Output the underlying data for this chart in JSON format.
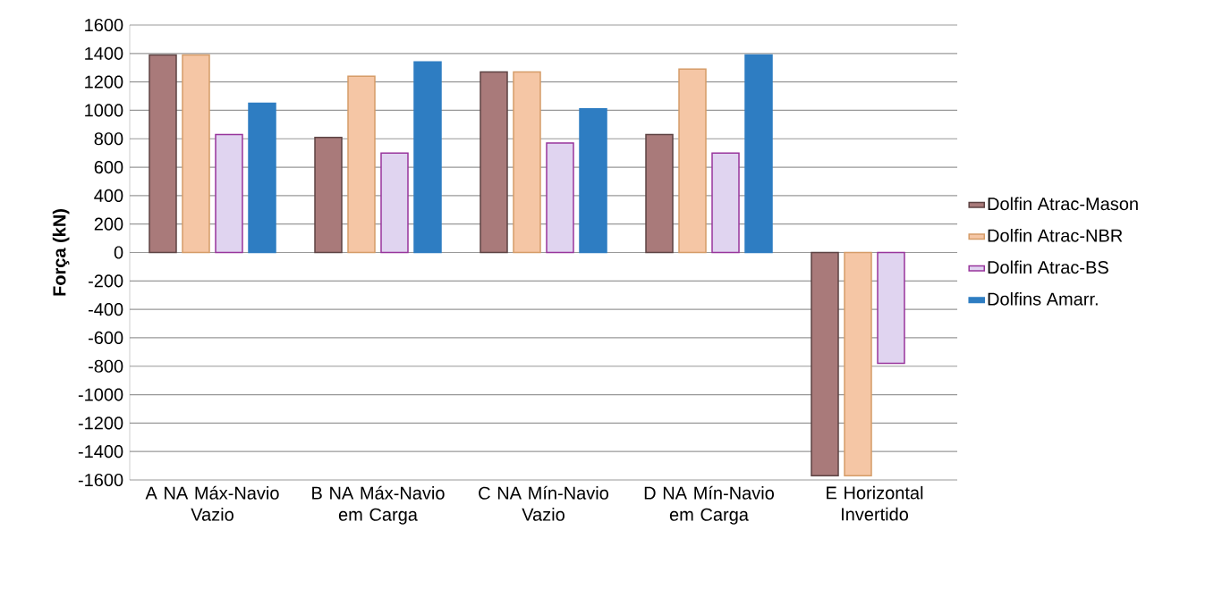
{
  "chart_data": {
    "type": "bar",
    "ylabel": "Força (kN)",
    "categories": [
      "A NA Máx-Navio Vazio",
      "B NA Máx-Navio em Carga",
      "C NA Mín-Navio Vazio",
      "D NA Mín-Navio em Carga",
      "E Horizontal Invertido"
    ],
    "series": [
      {
        "name": "Dolfin Atrac-Mason",
        "color": "#a97a7a",
        "values": [
          1390,
          810,
          1270,
          830,
          -1570
        ]
      },
      {
        "name": "Dolfin Atrac-NBR",
        "color": "#f5c6a5",
        "values": [
          1390,
          1240,
          1270,
          1290,
          -1570
        ]
      },
      {
        "name": "Dolfin Atrac-BS",
        "color": "#e0d4f0",
        "values": [
          830,
          700,
          770,
          700,
          -780
        ]
      },
      {
        "name": "Dolfins Amarr.",
        "color": "#2e7dc2",
        "values": [
          1050,
          1340,
          1010,
          1390,
          null
        ]
      }
    ],
    "ylim": [
      -1600,
      1600
    ],
    "yticks": [
      -1600,
      -1400,
      -1200,
      -1000,
      -800,
      -600,
      -400,
      -200,
      0,
      200,
      400,
      600,
      800,
      1000,
      1200,
      1400,
      1600
    ],
    "grid": "y",
    "legend": "right"
  }
}
